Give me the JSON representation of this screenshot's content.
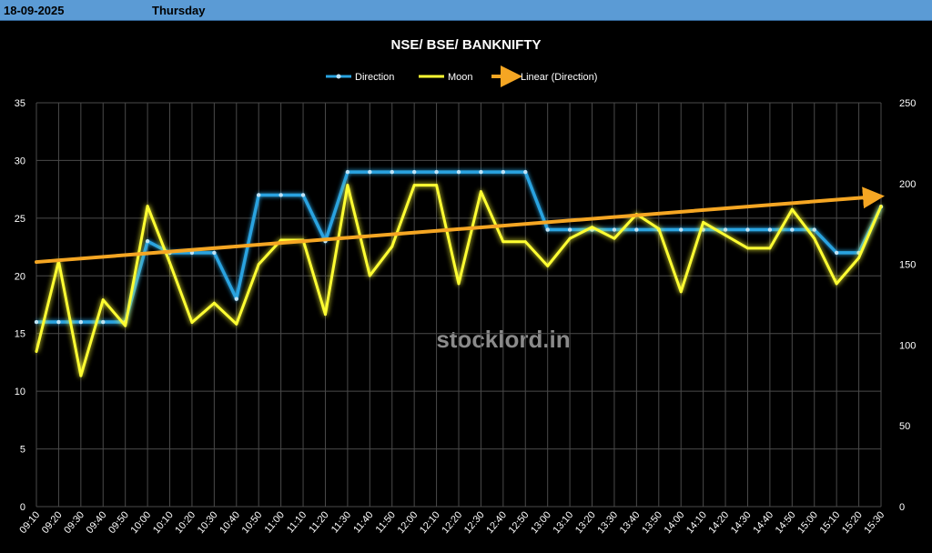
{
  "header": {
    "date": "18-09-2025",
    "day": "Thursday"
  },
  "chart_data": {
    "type": "line",
    "title": "NSE/ BSE/ BANKNIFTY",
    "watermark": "stocklord.in",
    "legend": [
      "Direction",
      "Moon",
      "Linear (Direction)"
    ],
    "legend_position": "top-center",
    "grid": true,
    "categories": [
      "09:10",
      "09:20",
      "09:30",
      "09:40",
      "09:50",
      "10:00",
      "10:10",
      "10:20",
      "10:30",
      "10:40",
      "10:50",
      "11:00",
      "11:10",
      "11:20",
      "11:30",
      "11:40",
      "11:50",
      "12:00",
      "12:10",
      "12:20",
      "12:30",
      "12:40",
      "12:50",
      "13:00",
      "13:10",
      "13:20",
      "13:30",
      "13:40",
      "13:50",
      "14:00",
      "14:10",
      "14:20",
      "14:30",
      "14:40",
      "14:50",
      "15:00",
      "15:10",
      "15:20",
      "15:30"
    ],
    "y_left": {
      "ticks": [
        0,
        5,
        10,
        15,
        20,
        25,
        30,
        35
      ],
      "range": [
        0,
        35
      ]
    },
    "y_right": {
      "ticks": [
        0,
        50,
        100,
        150,
        200,
        250
      ],
      "range": [
        0,
        250
      ]
    },
    "series": [
      {
        "name": "Direction",
        "axis": "left",
        "color": "#29a3e0",
        "values": [
          16,
          16,
          16,
          16,
          16,
          23,
          22,
          22,
          22,
          18,
          27,
          27,
          27,
          23,
          29,
          29,
          29,
          29,
          29,
          29,
          29,
          29,
          29,
          24,
          24,
          24,
          24,
          24,
          24,
          24,
          24,
          24,
          24,
          24,
          24,
          24,
          22,
          22,
          26
        ]
      },
      {
        "name": "Moon",
        "axis": "right",
        "color": "#ffff33",
        "values": [
          96,
          152,
          81,
          128,
          112,
          186,
          151,
          114,
          126,
          113,
          150,
          165,
          165,
          119,
          199,
          143,
          161,
          199,
          199,
          138,
          195,
          164,
          164,
          149,
          166,
          173,
          166,
          181,
          172,
          133,
          176,
          168,
          160,
          160,
          184,
          166,
          138,
          154,
          186
        ]
      },
      {
        "name": "Linear (Direction)",
        "axis": "left",
        "color": "#f5a623",
        "trend": [
          21.2,
          26.9
        ]
      }
    ]
  },
  "colors": {
    "header_bg": "#5b9bd5",
    "grid": "#555555"
  }
}
